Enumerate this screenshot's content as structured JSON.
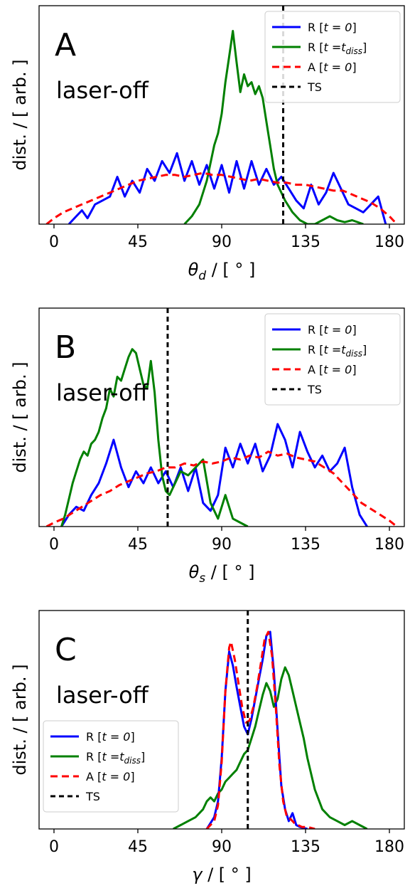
{
  "colors": {
    "R_t0": "#0000ff",
    "R_tdiss": "#008000",
    "A_t0": "#ff0000",
    "TS": "#000000"
  },
  "chart_data": [
    {
      "type": "line",
      "panel": "A",
      "annotation": "laser-off",
      "xlabel_main": "θ",
      "xlabel_sub": "d",
      "xlabel_unit": " / [ ° ]",
      "ylabel": "dist. / [ arb. ]",
      "xlim": [
        -8,
        188
      ],
      "ylim": [
        0,
        1.0
      ],
      "xticks": [
        0,
        45,
        90,
        135,
        180
      ],
      "legend_position": "top-right",
      "ts_x": 123,
      "series": [
        {
          "key": "R_t0",
          "name": "R [t = 0]",
          "x": [
            8,
            12,
            15,
            18,
            22,
            26,
            30,
            34,
            38,
            42,
            46,
            50,
            54,
            58,
            62,
            66,
            70,
            74,
            78,
            82,
            86,
            90,
            94,
            98,
            102,
            106,
            110,
            114,
            118,
            122,
            126,
            130,
            134,
            138,
            142,
            146,
            150,
            154,
            158,
            162,
            166,
            170,
            174,
            178
          ],
          "y": [
            0.0,
            0.04,
            0.07,
            0.03,
            0.1,
            0.12,
            0.14,
            0.24,
            0.14,
            0.22,
            0.16,
            0.28,
            0.22,
            0.32,
            0.26,
            0.36,
            0.22,
            0.32,
            0.2,
            0.3,
            0.18,
            0.3,
            0.16,
            0.32,
            0.18,
            0.32,
            0.2,
            0.28,
            0.2,
            0.24,
            0.18,
            0.12,
            0.08,
            0.2,
            0.1,
            0.16,
            0.26,
            0.18,
            0.1,
            0.08,
            0.06,
            0.1,
            0.14,
            0.0
          ]
        },
        {
          "key": "R_tdiss",
          "name": "R [t = t_diss]",
          "x": [
            70,
            74,
            78,
            82,
            86,
            88,
            90,
            92,
            94,
            96,
            98,
            100,
            102,
            104,
            106,
            108,
            110,
            112,
            114,
            116,
            118,
            120,
            124,
            128,
            132,
            136,
            140,
            144,
            148,
            152,
            156,
            160,
            166
          ],
          "y": [
            0.0,
            0.04,
            0.1,
            0.22,
            0.4,
            0.46,
            0.56,
            0.72,
            0.85,
            0.98,
            0.82,
            0.67,
            0.76,
            0.7,
            0.72,
            0.66,
            0.7,
            0.64,
            0.52,
            0.4,
            0.28,
            0.2,
            0.12,
            0.06,
            0.02,
            0.0,
            0.0,
            0.02,
            0.04,
            0.02,
            0.01,
            0.02,
            0.0
          ]
        },
        {
          "key": "A_t0",
          "name": "A [t = 0]",
          "x": [
            -4,
            0,
            5,
            10,
            15,
            20,
            25,
            30,
            35,
            40,
            45,
            50,
            55,
            60,
            65,
            70,
            75,
            80,
            85,
            90,
            95,
            100,
            105,
            110,
            115,
            120,
            125,
            130,
            135,
            140,
            145,
            150,
            155,
            160,
            165,
            170,
            175,
            180,
            184
          ],
          "y": [
            0.0,
            0.03,
            0.06,
            0.08,
            0.1,
            0.12,
            0.14,
            0.16,
            0.18,
            0.2,
            0.22,
            0.23,
            0.24,
            0.25,
            0.25,
            0.24,
            0.25,
            0.26,
            0.25,
            0.25,
            0.24,
            0.23,
            0.22,
            0.23,
            0.22,
            0.21,
            0.21,
            0.2,
            0.2,
            0.19,
            0.18,
            0.17,
            0.17,
            0.15,
            0.13,
            0.11,
            0.08,
            0.04,
            0.0
          ]
        }
      ]
    },
    {
      "type": "line",
      "panel": "B",
      "annotation": "laser-off",
      "xlabel_main": "θ",
      "xlabel_sub": "s",
      "xlabel_unit": " / [ ° ]",
      "ylabel": "dist. / [ arb. ]",
      "xlim": [
        -8,
        188
      ],
      "ylim": [
        0,
        1.0
      ],
      "xticks": [
        0,
        45,
        90,
        135,
        180
      ],
      "legend_position": "top-right",
      "ts_x": 61,
      "series": [
        {
          "key": "R_t0",
          "name": "R [t = 0]",
          "x": [
            4,
            8,
            12,
            16,
            20,
            24,
            28,
            32,
            36,
            40,
            44,
            48,
            52,
            56,
            60,
            64,
            68,
            72,
            76,
            80,
            84,
            88,
            92,
            96,
            100,
            104,
            108,
            112,
            116,
            120,
            124,
            128,
            132,
            136,
            140,
            144,
            148,
            152,
            156,
            160,
            164,
            168
          ],
          "y": [
            0.0,
            0.06,
            0.1,
            0.08,
            0.16,
            0.22,
            0.32,
            0.44,
            0.3,
            0.2,
            0.28,
            0.22,
            0.3,
            0.22,
            0.28,
            0.2,
            0.3,
            0.18,
            0.3,
            0.12,
            0.08,
            0.16,
            0.4,
            0.3,
            0.42,
            0.32,
            0.42,
            0.28,
            0.36,
            0.52,
            0.44,
            0.3,
            0.48,
            0.38,
            0.3,
            0.36,
            0.28,
            0.32,
            0.4,
            0.2,
            0.06,
            0.0
          ]
        },
        {
          "key": "R_tdiss",
          "name": "R [t = t_diss]",
          "x": [
            4,
            6,
            8,
            10,
            12,
            14,
            16,
            18,
            20,
            22,
            24,
            26,
            28,
            30,
            32,
            34,
            36,
            38,
            40,
            42,
            44,
            46,
            48,
            50,
            52,
            54,
            56,
            58,
            60,
            62,
            64,
            68,
            72,
            76,
            80,
            84,
            88,
            92,
            96,
            100,
            104
          ],
          "y": [
            0.0,
            0.06,
            0.14,
            0.22,
            0.28,
            0.34,
            0.38,
            0.36,
            0.42,
            0.44,
            0.48,
            0.55,
            0.6,
            0.7,
            0.66,
            0.76,
            0.74,
            0.8,
            0.86,
            0.9,
            0.88,
            0.8,
            0.72,
            0.7,
            0.84,
            0.68,
            0.44,
            0.26,
            0.18,
            0.16,
            0.2,
            0.28,
            0.26,
            0.3,
            0.34,
            0.12,
            0.04,
            0.16,
            0.04,
            0.02,
            0.0
          ]
        },
        {
          "key": "A_t0",
          "name": "A [t = 0]",
          "x": [
            -4,
            0,
            5,
            10,
            15,
            20,
            25,
            30,
            35,
            40,
            45,
            50,
            55,
            60,
            65,
            70,
            75,
            80,
            85,
            90,
            95,
            100,
            105,
            110,
            115,
            120,
            125,
            130,
            135,
            140,
            145,
            150,
            155,
            160,
            165,
            170,
            175,
            180,
            184
          ],
          "y": [
            0.0,
            0.02,
            0.04,
            0.07,
            0.1,
            0.13,
            0.16,
            0.18,
            0.21,
            0.23,
            0.25,
            0.27,
            0.28,
            0.3,
            0.3,
            0.32,
            0.31,
            0.33,
            0.32,
            0.33,
            0.35,
            0.34,
            0.36,
            0.35,
            0.38,
            0.36,
            0.37,
            0.35,
            0.34,
            0.33,
            0.3,
            0.27,
            0.22,
            0.17,
            0.12,
            0.09,
            0.06,
            0.03,
            0.0
          ]
        }
      ]
    },
    {
      "type": "line",
      "panel": "C",
      "annotation": "laser-off",
      "xlabel_main": "γ",
      "xlabel_sub": "",
      "xlabel_unit": " / [ ° ]",
      "ylabel": "dist. / [ arb. ]",
      "xlim": [
        -8,
        188
      ],
      "ylim": [
        0,
        1.0
      ],
      "xticks": [
        0,
        45,
        90,
        135,
        180
      ],
      "legend_position": "bottom-left",
      "ts_x": 104,
      "series": [
        {
          "key": "R_tdiss",
          "name": "R [t = t_diss]",
          "x": [
            64,
            68,
            72,
            76,
            80,
            82,
            84,
            86,
            88,
            90,
            92,
            94,
            96,
            98,
            100,
            102,
            104,
            106,
            108,
            110,
            112,
            114,
            116,
            118,
            120,
            122,
            124,
            126,
            128,
            130,
            132,
            134,
            136,
            140,
            144,
            148,
            152,
            156,
            160,
            164,
            168
          ],
          "y": [
            0.0,
            0.02,
            0.04,
            0.06,
            0.1,
            0.14,
            0.16,
            0.14,
            0.18,
            0.2,
            0.24,
            0.26,
            0.28,
            0.3,
            0.34,
            0.38,
            0.4,
            0.46,
            0.52,
            0.6,
            0.68,
            0.74,
            0.7,
            0.62,
            0.66,
            0.76,
            0.82,
            0.78,
            0.7,
            0.62,
            0.54,
            0.46,
            0.36,
            0.2,
            0.1,
            0.06,
            0.04,
            0.02,
            0.04,
            0.02,
            0.0
          ]
        },
        {
          "key": "R_t0",
          "name": "R [t = 0]",
          "x": [
            82,
            86,
            88,
            90,
            92,
            94,
            96,
            98,
            100,
            102,
            104,
            106,
            108,
            110,
            112,
            114,
            116,
            118,
            120,
            122,
            124,
            126,
            128,
            130,
            132,
            136
          ],
          "y": [
            0.0,
            0.06,
            0.14,
            0.36,
            0.7,
            0.9,
            0.83,
            0.72,
            0.62,
            0.52,
            0.48,
            0.56,
            0.66,
            0.76,
            0.86,
            0.98,
            1.0,
            0.8,
            0.5,
            0.22,
            0.1,
            0.04,
            0.08,
            0.02,
            0.01,
            0.0
          ]
        },
        {
          "key": "A_t0",
          "name": "A [t = 0]",
          "x": [
            82,
            86,
            88,
            90,
            92,
            94,
            95,
            97,
            99,
            101,
            103,
            105,
            107,
            109,
            111,
            113,
            115,
            117,
            119,
            121,
            123,
            125,
            127,
            129,
            131,
            133,
            136,
            140
          ],
          "y": [
            0.0,
            0.04,
            0.12,
            0.34,
            0.7,
            0.92,
            0.95,
            0.86,
            0.74,
            0.62,
            0.54,
            0.55,
            0.62,
            0.72,
            0.84,
            0.96,
            1.0,
            0.88,
            0.62,
            0.32,
            0.14,
            0.06,
            0.05,
            0.03,
            0.02,
            0.01,
            0.01,
            0.0
          ]
        }
      ]
    }
  ]
}
